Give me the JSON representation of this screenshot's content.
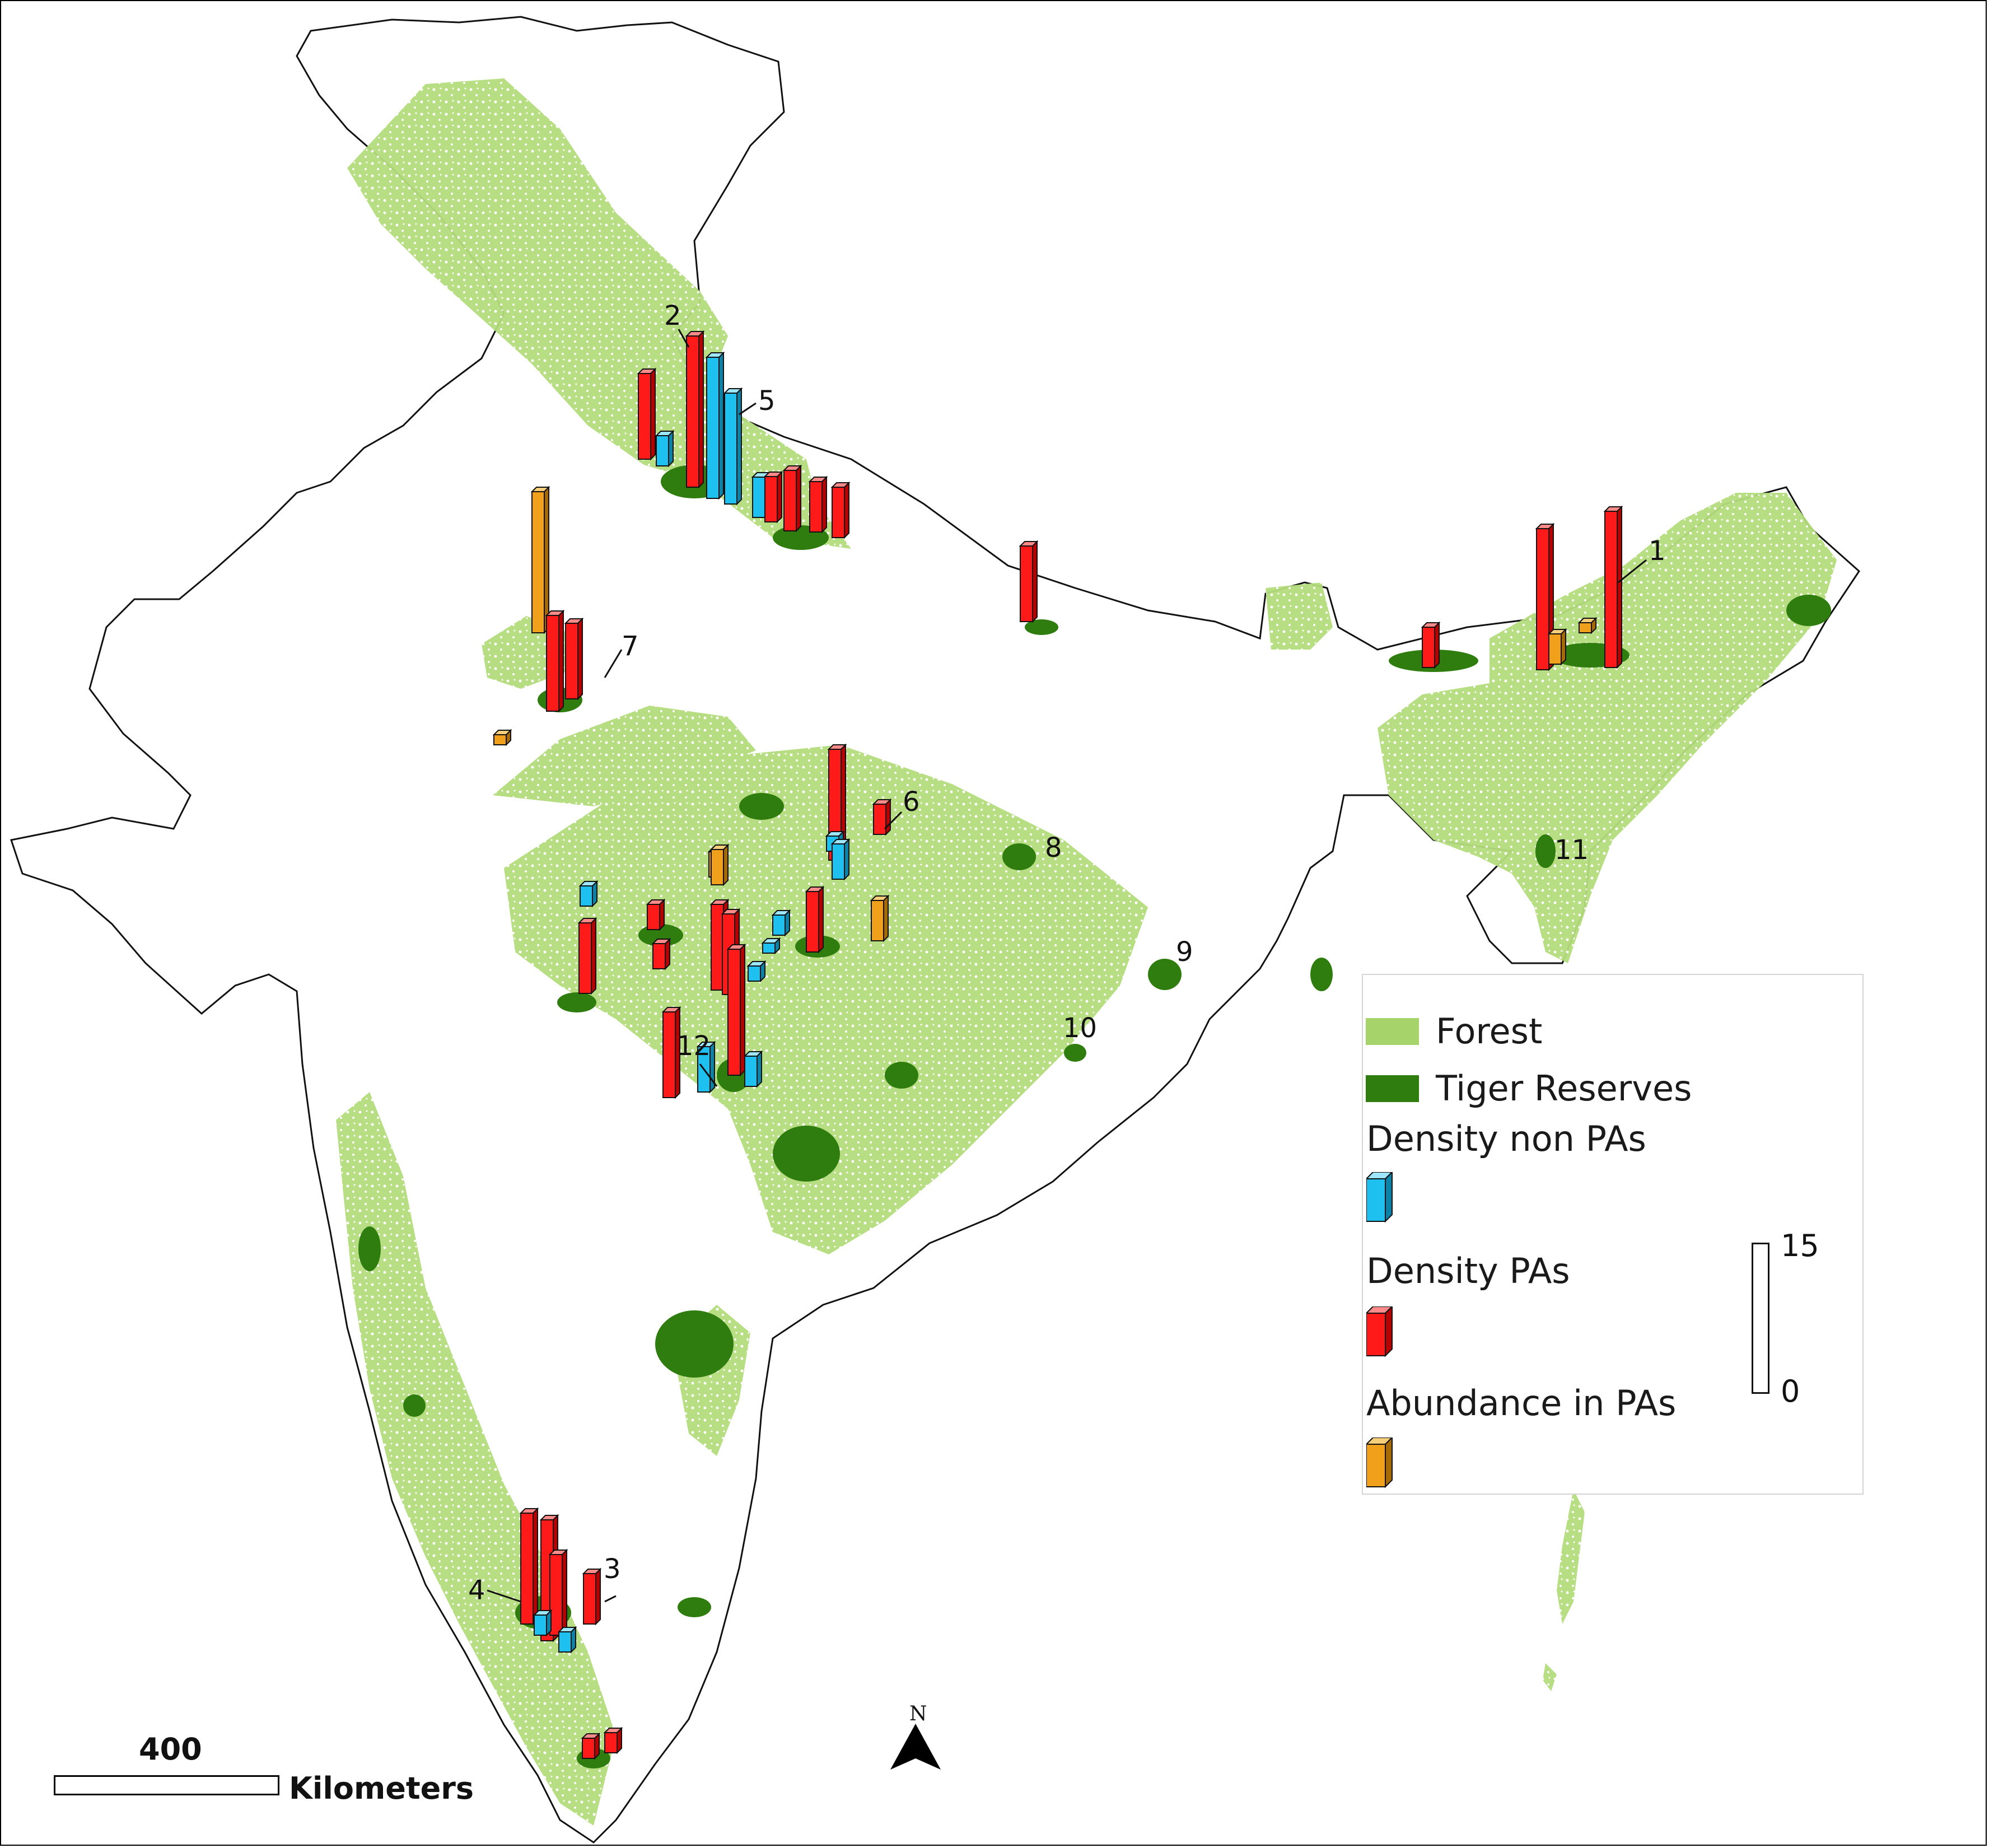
{
  "legend": {
    "forest": {
      "label": "Forest",
      "color": "#a7d46a"
    },
    "tiger_reserves": {
      "label": "Tiger Reserves",
      "color": "#2e7d0e"
    },
    "density_non_pas": {
      "label": "Density non PAs",
      "color": "#1ec0f0"
    },
    "density_pas": {
      "label": "Density PAs",
      "color": "#ff1a1a"
    },
    "abundance_in_pas": {
      "label": "Abundance in PAs",
      "color": "#f0a01a"
    },
    "bar_scale": {
      "max": "15",
      "min": "0"
    }
  },
  "scale_bar": {
    "value": "400",
    "unit": "Kilometers"
  },
  "north_arrow": {
    "label": "N"
  },
  "site_labels": [
    "1",
    "2",
    "3",
    "4",
    "5",
    "6",
    "7",
    "8",
    "9",
    "10",
    "11",
    "12"
  ],
  "bars": [
    {
      "series": "density_pas",
      "value": 8.5
    },
    {
      "series": "density_non_pas",
      "value": 3
    },
    {
      "series": "density_pas",
      "value": 15
    },
    {
      "series": "density_non_pas",
      "value": 14
    },
    {
      "series": "density_non_pas",
      "value": 11
    },
    {
      "series": "density_non_pas",
      "value": 4
    },
    {
      "series": "density_pas",
      "value": 4.5
    },
    {
      "series": "density_pas",
      "value": 6
    },
    {
      "series": "density_pas",
      "value": 5
    },
    {
      "series": "density_pas",
      "value": 5
    },
    {
      "series": "density_pas",
      "value": 7.5
    },
    {
      "series": "density_pas",
      "value": 4
    },
    {
      "series": "abundance_in_pas",
      "value": 14
    },
    {
      "series": "density_pas",
      "value": 9.5
    },
    {
      "series": "abundance_in_pas",
      "value": 1
    },
    {
      "series": "density_pas",
      "value": 7.5
    },
    {
      "series": "density_pas",
      "value": 14
    },
    {
      "series": "abundance_in_pas",
      "value": 3
    },
    {
      "series": "density_pas",
      "value": 15.5
    },
    {
      "series": "abundance_in_pas",
      "value": 1
    },
    {
      "series": "density_pas",
      "value": 3
    },
    {
      "series": "density_non_pas",
      "value": 2
    },
    {
      "series": "abundance_in_pas",
      "value": 2.5
    },
    {
      "series": "density_pas",
      "value": 11
    },
    {
      "series": "density_non_pas",
      "value": 1.5
    },
    {
      "series": "density_non_pas",
      "value": 3.5
    },
    {
      "series": "abundance_in_pas",
      "value": 3.5
    },
    {
      "series": "density_pas",
      "value": 6
    },
    {
      "series": "abundance_in_pas",
      "value": 4
    },
    {
      "series": "density_non_pas",
      "value": 2
    },
    {
      "series": "density_pas",
      "value": 2.5
    },
    {
      "series": "density_pas",
      "value": 7
    },
    {
      "series": "density_pas",
      "value": 8.5
    },
    {
      "series": "density_non_pas",
      "value": 1
    },
    {
      "series": "density_non_pas",
      "value": 1.5
    },
    {
      "series": "density_pas",
      "value": 8
    },
    {
      "series": "density_pas",
      "value": 2.5
    },
    {
      "series": "density_pas",
      "value": 8.5
    },
    {
      "series": "density_non_pas",
      "value": 4.5
    },
    {
      "series": "density_non_pas",
      "value": 3
    },
    {
      "series": "density_pas",
      "value": 12.5
    },
    {
      "series": "density_pas",
      "value": 11
    },
    {
      "series": "density_pas",
      "value": 12
    },
    {
      "series": "density_pas",
      "value": 8
    },
    {
      "series": "density_pas",
      "value": 5
    },
    {
      "series": "density_non_pas",
      "value": 2
    },
    {
      "series": "density_non_pas",
      "value": 2
    },
    {
      "series": "density_pas",
      "value": 2
    },
    {
      "series": "density_pas",
      "value": 2
    }
  ]
}
